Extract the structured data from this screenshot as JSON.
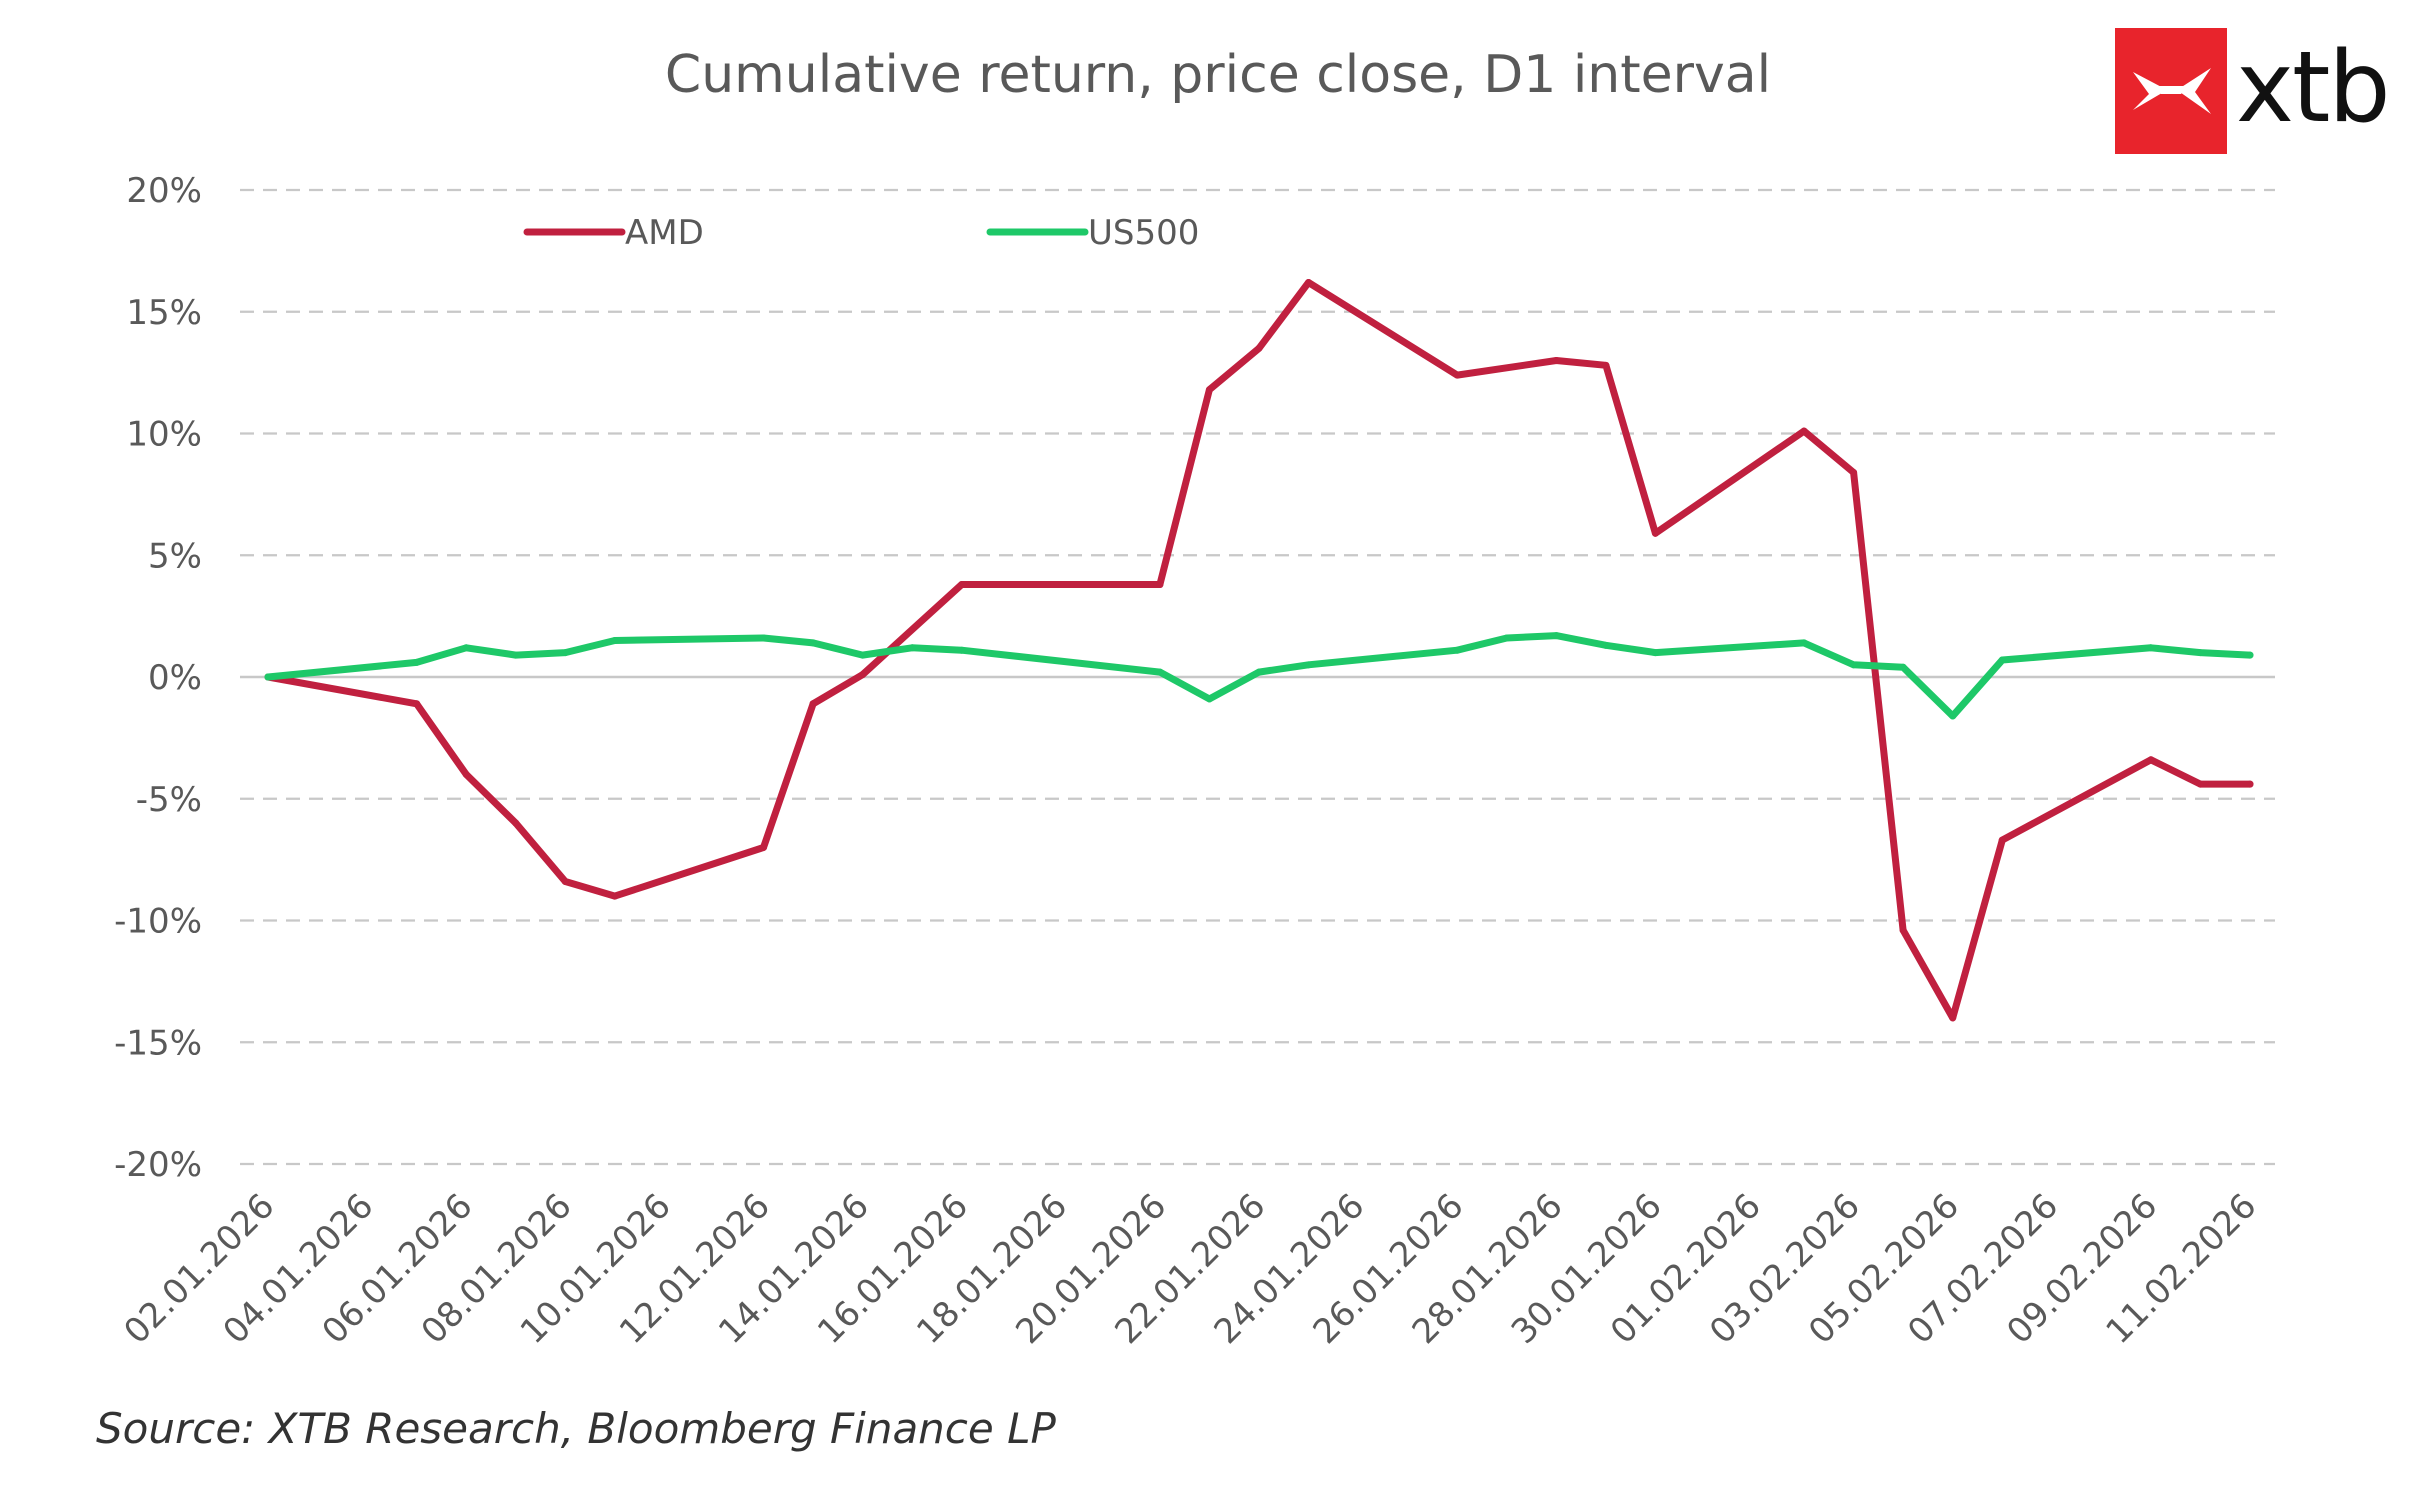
{
  "title": "Cumulative return, price close, D1 interval",
  "source": "Source: XTB Research, Bloomberg Finance LP",
  "brand": {
    "name": "xtb",
    "color": "#e8242c",
    "icon": "xtb-x-mark-icon"
  },
  "chart_data": {
    "type": "line",
    "title": "Cumulative return, price close, D1 interval",
    "xlabel": "",
    "ylabel": "",
    "ylim": [
      -20,
      20
    ],
    "y_ticks": [
      "20%",
      "15%",
      "10%",
      "5%",
      "0%",
      "-5%",
      "-10%",
      "-15%",
      "-20%"
    ],
    "x_range": [
      "02.01.2026",
      "11.02.2026"
    ],
    "x_ticks": [
      "02.01.2026",
      "04.01.2026",
      "06.01.2026",
      "08.01.2026",
      "10.01.2026",
      "12.01.2026",
      "14.01.2026",
      "16.01.2026",
      "18.01.2026",
      "20.01.2026",
      "22.01.2026",
      "24.01.2026",
      "26.01.2026",
      "28.01.2026",
      "30.01.2026",
      "01.02.2026",
      "03.02.2026",
      "05.02.2026",
      "07.02.2026",
      "09.02.2026",
      "11.02.2026"
    ],
    "grid": "horizontal dashed",
    "legend_position": "top-left",
    "series": [
      {
        "name": "AMD",
        "color": "#c0203f",
        "points": [
          {
            "x": "02.01.2026",
            "y": 0.0
          },
          {
            "x": "05.01.2026",
            "y": -1.1
          },
          {
            "x": "06.01.2026",
            "y": -4.0
          },
          {
            "x": "07.01.2026",
            "y": -6.0
          },
          {
            "x": "08.01.2026",
            "y": -8.4
          },
          {
            "x": "09.01.2026",
            "y": -9.0
          },
          {
            "x": "12.01.2026",
            "y": -7.0
          },
          {
            "x": "13.01.2026",
            "y": -1.1
          },
          {
            "x": "14.01.2026",
            "y": 0.1
          },
          {
            "x": "16.01.2026",
            "y": 3.8
          },
          {
            "x": "20.01.2026",
            "y": 3.8
          },
          {
            "x": "21.01.2026",
            "y": 11.8
          },
          {
            "x": "22.01.2026",
            "y": 13.5
          },
          {
            "x": "23.01.2026",
            "y": 16.2
          },
          {
            "x": "26.01.2026",
            "y": 12.4
          },
          {
            "x": "28.01.2026",
            "y": 13.0
          },
          {
            "x": "29.01.2026",
            "y": 12.8
          },
          {
            "x": "30.01.2026",
            "y": 5.9
          },
          {
            "x": "02.02.2026",
            "y": 10.1
          },
          {
            "x": "03.02.2026",
            "y": 8.4
          },
          {
            "x": "04.02.2026",
            "y": -10.4
          },
          {
            "x": "05.02.2026",
            "y": -14.0
          },
          {
            "x": "06.02.2026",
            "y": -6.7
          },
          {
            "x": "09.02.2026",
            "y": -3.4
          },
          {
            "x": "10.02.2026",
            "y": -4.4
          },
          {
            "x": "11.02.2026",
            "y": -4.4
          }
        ]
      },
      {
        "name": "US500",
        "color": "#1ec868",
        "points": [
          {
            "x": "02.01.2026",
            "y": 0.0
          },
          {
            "x": "05.01.2026",
            "y": 0.6
          },
          {
            "x": "06.01.2026",
            "y": 1.2
          },
          {
            "x": "07.01.2026",
            "y": 0.9
          },
          {
            "x": "08.01.2026",
            "y": 1.0
          },
          {
            "x": "09.01.2026",
            "y": 1.5
          },
          {
            "x": "12.01.2026",
            "y": 1.6
          },
          {
            "x": "13.01.2026",
            "y": 1.4
          },
          {
            "x": "14.01.2026",
            "y": 0.9
          },
          {
            "x": "15.01.2026",
            "y": 1.2
          },
          {
            "x": "16.01.2026",
            "y": 1.1
          },
          {
            "x": "20.01.2026",
            "y": 0.2
          },
          {
            "x": "21.01.2026",
            "y": -0.9
          },
          {
            "x": "22.01.2026",
            "y": 0.2
          },
          {
            "x": "23.01.2026",
            "y": 0.5
          },
          {
            "x": "26.01.2026",
            "y": 1.1
          },
          {
            "x": "27.01.2026",
            "y": 1.6
          },
          {
            "x": "28.01.2026",
            "y": 1.7
          },
          {
            "x": "29.01.2026",
            "y": 1.3
          },
          {
            "x": "30.01.2026",
            "y": 1.0
          },
          {
            "x": "02.02.2026",
            "y": 1.4
          },
          {
            "x": "03.02.2026",
            "y": 0.5
          },
          {
            "x": "04.02.2026",
            "y": 0.4
          },
          {
            "x": "05.02.2026",
            "y": -1.6
          },
          {
            "x": "06.02.2026",
            "y": 0.7
          },
          {
            "x": "09.02.2026",
            "y": 1.2
          },
          {
            "x": "10.02.2026",
            "y": 1.0
          },
          {
            "x": "11.02.2026",
            "y": 0.9
          }
        ]
      }
    ]
  }
}
